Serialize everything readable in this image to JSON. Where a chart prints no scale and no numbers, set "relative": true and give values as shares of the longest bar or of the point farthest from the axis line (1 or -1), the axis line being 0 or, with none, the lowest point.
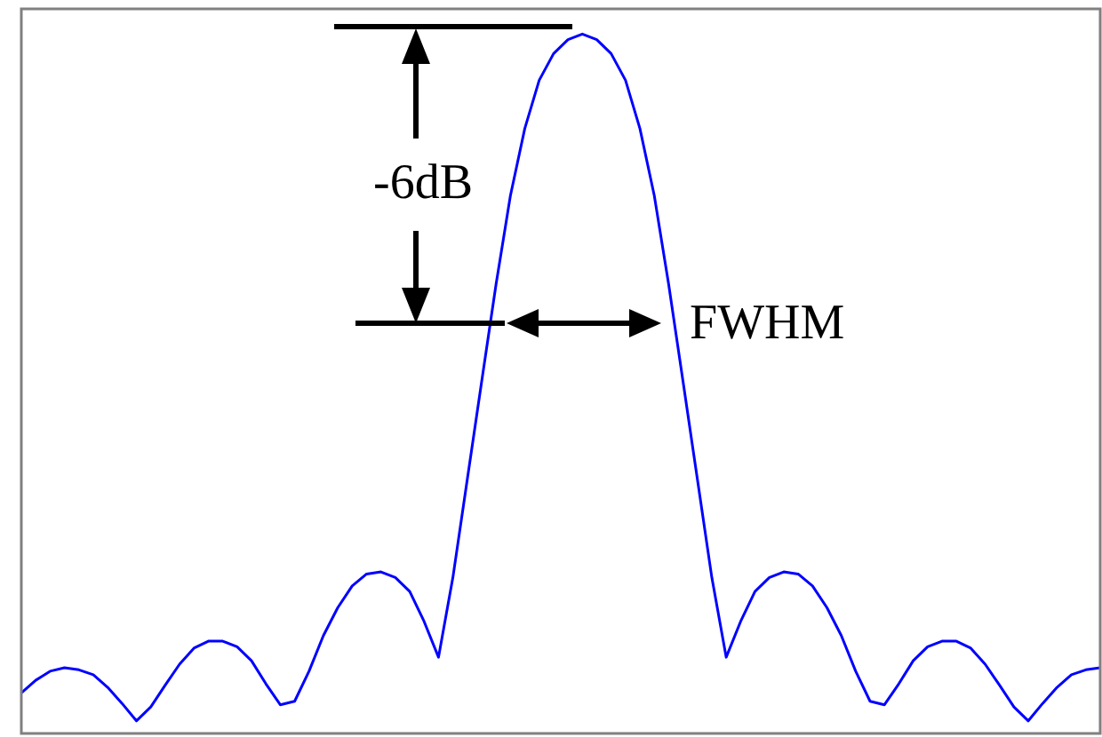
{
  "chart_data": {
    "type": "line",
    "relative": true,
    "color": "#0000ff",
    "marker": "none",
    "line_style": "solid",
    "grid": false,
    "legend": false,
    "tick_labels": false,
    "categories": [
      null,
      null,
      null,
      null,
      null,
      null,
      null,
      null,
      null,
      null,
      null,
      null,
      null,
      null,
      null,
      null,
      null,
      null,
      null,
      null,
      null,
      null,
      null,
      null,
      null,
      null,
      null,
      null,
      null,
      null,
      null,
      null,
      null,
      null,
      null,
      null,
      null,
      null,
      null,
      null,
      null,
      null,
      null,
      null,
      null,
      null,
      null,
      null,
      null,
      null,
      null,
      null,
      null,
      null,
      null,
      null,
      null,
      null,
      null,
      null,
      null,
      null,
      null,
      null,
      null,
      null,
      null,
      null,
      null,
      null,
      null,
      null,
      null,
      null,
      null,
      null
    ],
    "values": [
      0.058,
      0.076,
      0.089,
      0.094,
      0.091,
      0.084,
      0.066,
      0.043,
      0.018,
      0.038,
      0.069,
      0.099,
      0.122,
      0.132,
      0.132,
      0.124,
      0.104,
      0.071,
      0.041,
      0.046,
      0.089,
      0.14,
      0.18,
      0.211,
      0.228,
      0.231,
      0.223,
      0.203,
      0.16,
      0.109,
      0.223,
      0.363,
      0.503,
      0.642,
      0.769,
      0.865,
      0.934,
      0.972,
      0.992,
      1,
      0.992,
      0.972,
      0.934,
      0.865,
      0.769,
      0.642,
      0.503,
      0.363,
      0.223,
      0.109,
      0.16,
      0.203,
      0.223,
      0.231,
      0.228,
      0.211,
      0.18,
      0.14,
      0.089,
      0.046,
      0.041,
      0.071,
      0.104,
      0.124,
      0.132,
      0.132,
      0.122,
      0.099,
      0.069,
      0.038,
      0.018,
      0.043,
      0.066,
      0.084,
      0.091,
      0.094
    ],
    "annotations": [
      "-6dB",
      "FWHM"
    ]
  }
}
